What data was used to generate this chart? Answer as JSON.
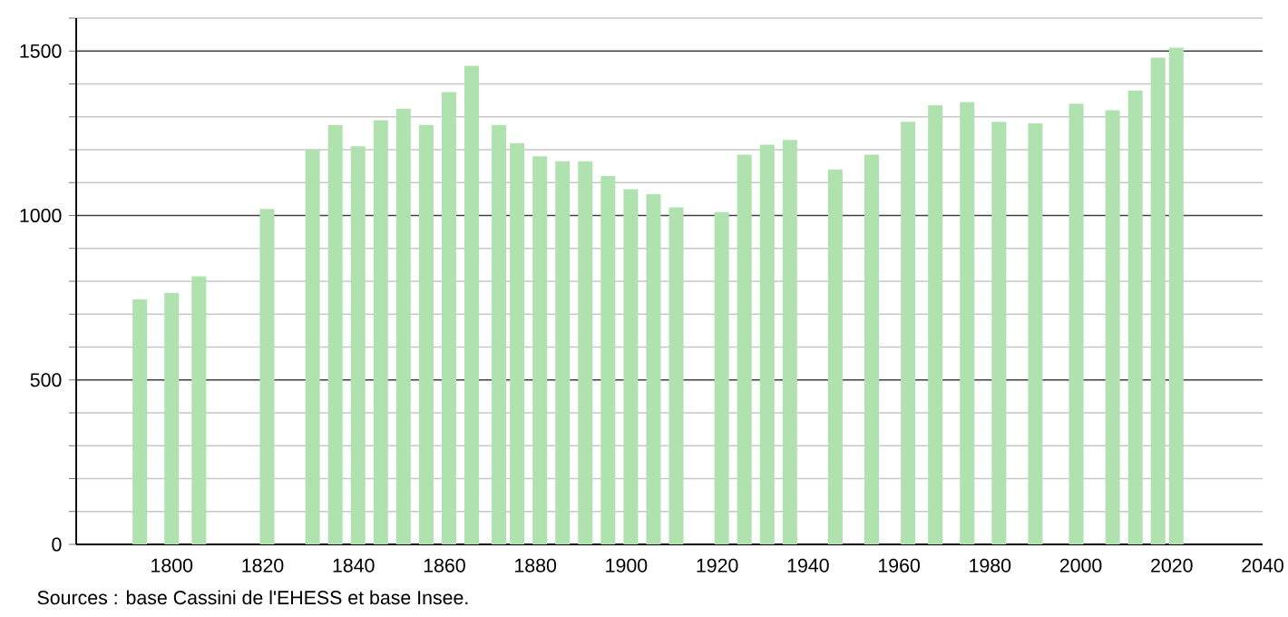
{
  "chart_data": {
    "type": "bar",
    "color": "#b0e2b0",
    "x": [
      1793,
      1800,
      1806,
      1821,
      1831,
      1836,
      1841,
      1846,
      1851,
      1856,
      1861,
      1866,
      1872,
      1876,
      1881,
      1886,
      1891,
      1896,
      1901,
      1906,
      1911,
      1921,
      1926,
      1931,
      1936,
      1946,
      1954,
      1962,
      1968,
      1975,
      1982,
      1990,
      1999,
      2007,
      2012,
      2017,
      2021
    ],
    "values": [
      745,
      765,
      815,
      1020,
      1200,
      1275,
      1210,
      1290,
      1325,
      1275,
      1375,
      1455,
      1275,
      1220,
      1180,
      1165,
      1165,
      1120,
      1080,
      1065,
      1025,
      1010,
      1185,
      1215,
      1230,
      1140,
      1185,
      1285,
      1335,
      1345,
      1285,
      1280,
      1340,
      1320,
      1380,
      1480,
      1510
    ],
    "xlim": [
      1779,
      2040
    ],
    "xticks": [
      1800,
      1820,
      1840,
      1860,
      1880,
      1900,
      1920,
      1940,
      1960,
      1980,
      2000,
      2020,
      2040
    ],
    "ylim": [
      0,
      1600
    ],
    "yticks": [
      0,
      {
        "value": 100,
        "label": null
      },
      {
        "value": 200,
        "label": null
      },
      {
        "value": 300,
        "label": null
      },
      {
        "value": 400,
        "label": null
      },
      500,
      {
        "value": 600,
        "label": null
      },
      {
        "value": 700,
        "label": null
      },
      {
        "value": 800,
        "label": null
      },
      {
        "value": 900,
        "label": null
      },
      1000,
      {
        "value": 1100,
        "label": null
      },
      {
        "value": 1200,
        "label": null
      },
      {
        "value": 1300,
        "label": null
      },
      {
        "value": 1400,
        "label": null
      },
      1500,
      {
        "value": 1600,
        "label": null
      }
    ],
    "grid": "y",
    "annotations": [
      "Sources : base Cassini de l'EHESS et base Insee."
    ]
  }
}
